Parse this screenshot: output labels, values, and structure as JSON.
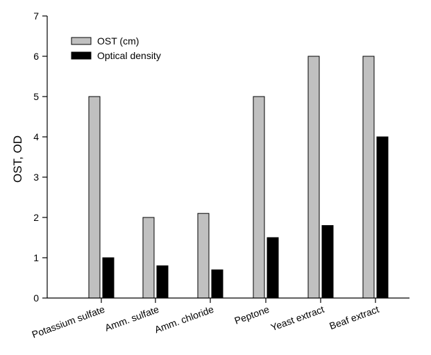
{
  "chart_data": {
    "type": "bar",
    "title": "",
    "xlabel": "",
    "ylabel": "OST, OD",
    "ylim": [
      0,
      7
    ],
    "yticks": [
      0,
      1,
      2,
      3,
      4,
      5,
      6,
      7
    ],
    "grid": false,
    "legend_position": "top-left",
    "categories": [
      "Potassium sulfate",
      "Amm. sulfate",
      "Amm. chloride",
      "Peptone",
      "Yeast extract",
      "Beaf extract"
    ],
    "series": [
      {
        "name": "OST (cm)",
        "values": [
          5.0,
          2.0,
          2.1,
          5.0,
          6.0,
          6.0
        ],
        "color": "#c0c0c0"
      },
      {
        "name": "Optical density",
        "values": [
          1.0,
          0.8,
          0.7,
          1.5,
          1.8,
          4.0
        ],
        "color": "#000000"
      }
    ]
  }
}
